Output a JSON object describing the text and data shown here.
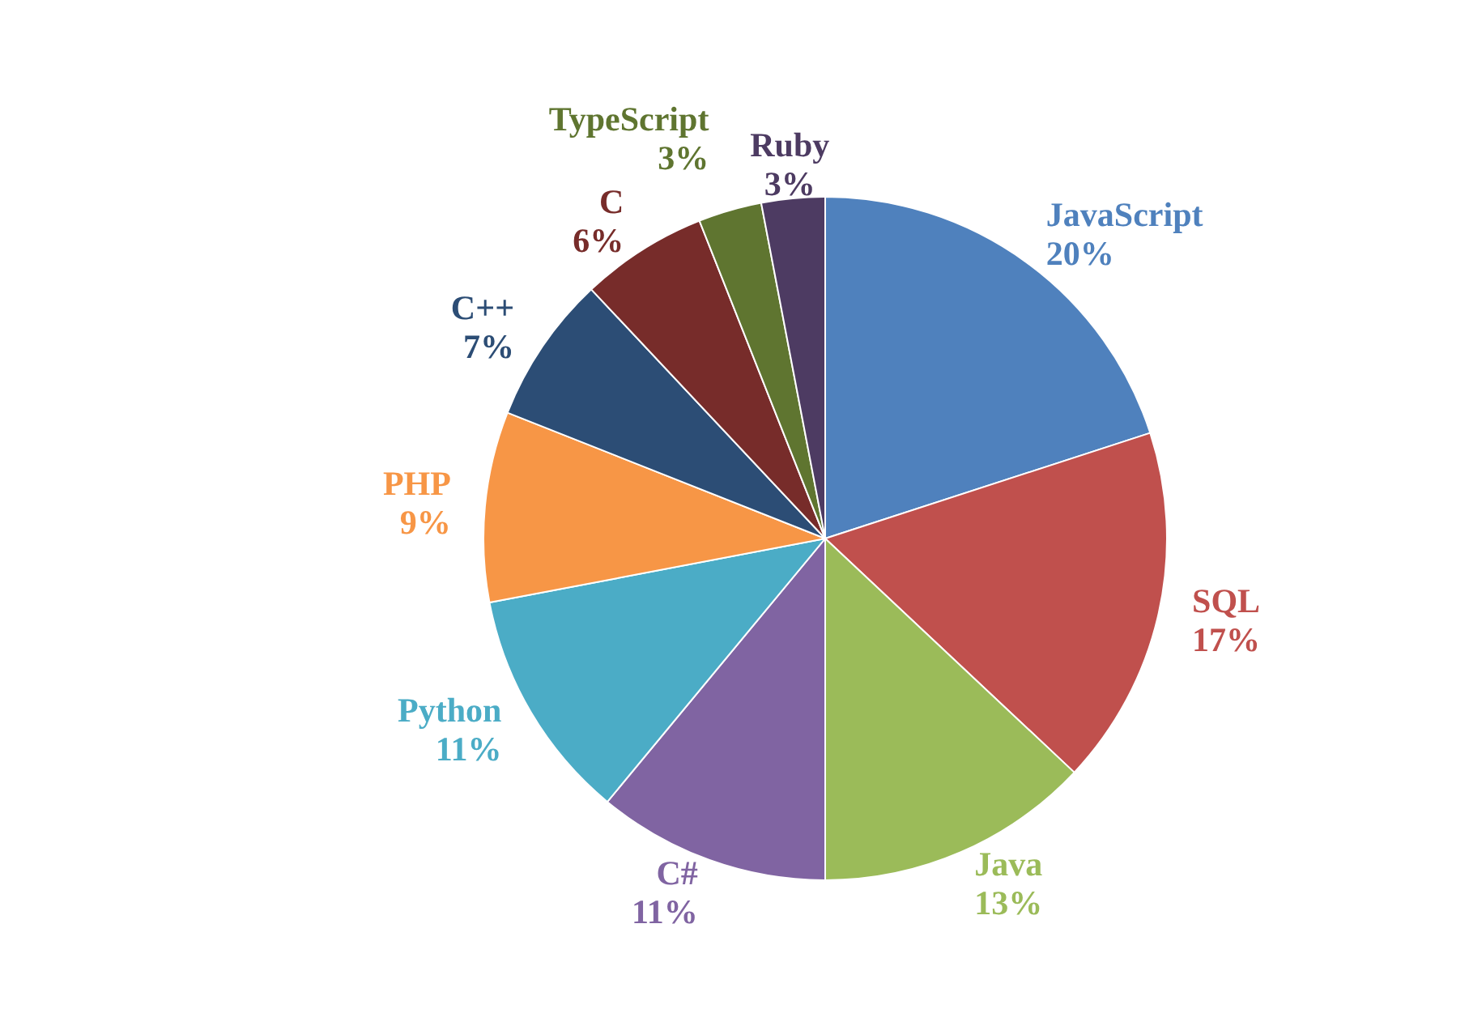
{
  "chart_data": {
    "type": "pie",
    "categories": [
      "JavaScript",
      "SQL",
      "Java",
      "C#",
      "Python",
      "PHP",
      "C++",
      "C",
      "TypeScript",
      "Ruby"
    ],
    "values": [
      20,
      17,
      13,
      11,
      11,
      9,
      7,
      6,
      3,
      3
    ],
    "colors": [
      "#4f81bd",
      "#c0504d",
      "#9bbb59",
      "#8064a2",
      "#4bacc6",
      "#f79646",
      "#2c4d75",
      "#772c2a",
      "#5f7530",
      "#4d3b62"
    ],
    "value_labels": [
      "20%",
      "17%",
      "13%",
      "11%",
      "11%",
      "9%",
      "7%",
      "6%",
      "3%",
      "3%"
    ]
  }
}
